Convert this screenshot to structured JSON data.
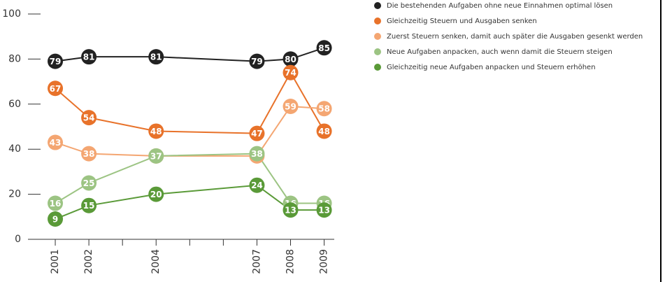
{
  "chart_data": {
    "type": "line",
    "x": [
      2001,
      2002,
      2004,
      2007,
      2008,
      2009
    ],
    "xlim": [
      2000.5,
      2009.3
    ],
    "xticks": [
      2001,
      2002,
      2004,
      2007,
      2008,
      2009
    ],
    "xminor": [
      2003,
      2005,
      2006
    ],
    "ylim": [
      0,
      100
    ],
    "yticks": [
      0,
      20,
      40,
      60,
      80,
      100
    ],
    "legend": "top-right",
    "series": [
      {
        "name": "Die bestehenden Aufgaben ohne neue Einnahmen optimal lösen",
        "color": "#222222",
        "values": [
          79,
          81,
          81,
          79,
          80,
          85
        ]
      },
      {
        "name": "Gleichzeitig Steuern und Ausgaben senken",
        "color": "#e8722a",
        "values": [
          67,
          54,
          48,
          47,
          74,
          48
        ]
      },
      {
        "name": "Zuerst Steuern senken, damit auch später die Ausgaben gesenkt werden",
        "color": "#f4a672",
        "values": [
          43,
          38,
          37,
          37,
          59,
          58
        ]
      },
      {
        "name": "Neue Aufgaben anpacken, auch wenn damit die Steuern steigen",
        "color": "#9cc483",
        "values": [
          16,
          25,
          37,
          38,
          16,
          16
        ]
      },
      {
        "name": "Gleichzeitig neue Aufgaben anpacken und Steuern erhöhen",
        "color": "#5a9a38",
        "values": [
          9,
          15,
          20,
          24,
          13,
          13
        ]
      }
    ]
  }
}
